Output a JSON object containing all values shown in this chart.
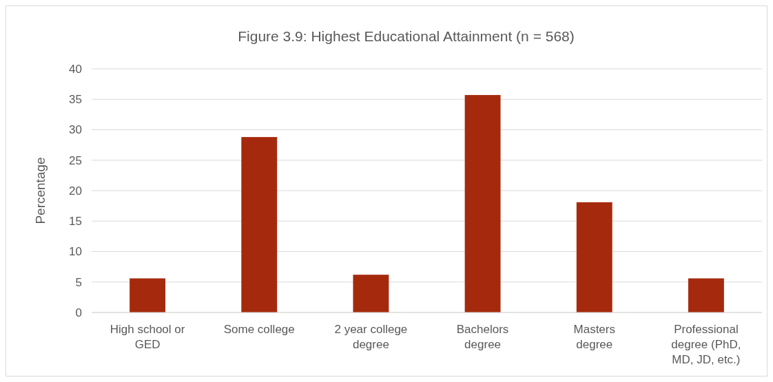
{
  "chart_data": {
    "type": "bar",
    "title": "Figure 3.9: Highest Educational Attainment (n = 568)",
    "ylabel": "Percentage",
    "categories": [
      "High school or GED",
      "Some college",
      "2 year college degree",
      "Bachelors degree",
      "Masters degree",
      "Professional degree (PhD, MD, JD, etc.)"
    ],
    "values": [
      5.6,
      28.8,
      6.2,
      35.7,
      18.1,
      5.6
    ],
    "color": "#a52a0d",
    "ylim": [
      0,
      40
    ],
    "yticks": [
      0,
      5,
      10,
      15,
      20,
      25,
      30,
      35,
      40
    ],
    "grid": "y"
  }
}
